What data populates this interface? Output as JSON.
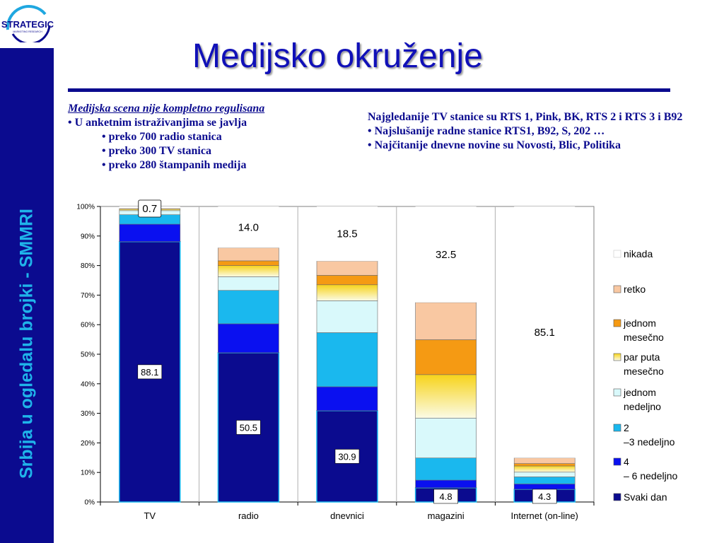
{
  "logo": {
    "text": "STRATEGIC",
    "subtext": "MARKETING RESEARCH"
  },
  "sidebar": {
    "text": "Srbija u ogledalu brojki - SMMRI"
  },
  "title": "Medijsko okruženje",
  "left_text": {
    "heading": "Medijska scena nije kompletno regulisana",
    "bullet_main": "• U anketnim istraživanjima se javlja",
    "sub_bullets": [
      "• preko 700 radio stanica",
      "• preko 300 TV stanica",
      "• preko 280 štampanih medija"
    ]
  },
  "right_text": {
    "lines": [
      "Najgledanije TV stanice su RTS 1, Pink, BK, RTS 2 i RTS 3 i B92",
      "• Najslušanije radne stanice RTS1, B92, S, 202 …",
      "• Najčitanije dnevne novine su Novosti, Blic, Politika"
    ]
  },
  "chart_data": {
    "type": "bar",
    "stacked": true,
    "categories": [
      "TV",
      "radio",
      "dnevnici",
      "magazini",
      "Internet (on-line)"
    ],
    "ylim": [
      0,
      100
    ],
    "yticks": [
      "0%",
      "10%",
      "20%",
      "30%",
      "40%",
      "50%",
      "60%",
      "70%",
      "80%",
      "90%",
      "100%"
    ],
    "grid": false,
    "legend_position": "right",
    "series": [
      {
        "name": "Svaki dan",
        "color": "#0b0b8f",
        "values": [
          88.1,
          50.5,
          30.9,
          4.8,
          4.3
        ]
      },
      {
        "name": "4 – 6 nedeljno",
        "color": "#0a10f0",
        "values": [
          5.9,
          9.8,
          8.1,
          2.6,
          1.8
        ]
      },
      {
        "name": "2 –3 nedeljno",
        "color": "#1ab8ee",
        "values": [
          3.2,
          11.3,
          18.3,
          7.5,
          2.4
        ]
      },
      {
        "name": "jednom nedeljno",
        "color": "#d9f9fb",
        "values": [
          1.4,
          4.6,
          10.8,
          13.5,
          1.6
        ]
      },
      {
        "name": "par puta mesečno",
        "color": "#f7ea8a",
        "values": [
          0.5,
          3.8,
          5.4,
          14.7,
          2.1
        ]
      },
      {
        "name": "jednom mesečno",
        "color": "#f59a13",
        "values": [
          0.2,
          1.6,
          3.2,
          11.8,
          0.8
        ]
      },
      {
        "name": "retko",
        "color": "#f9c8a2",
        "values": [
          0,
          4.4,
          4.8,
          12.6,
          1.9
        ]
      },
      {
        "name": "nikada",
        "color": "#ffffff",
        "values": [
          0.7,
          14.0,
          18.5,
          32.5,
          85.1
        ]
      }
    ],
    "data_labels": {
      "Svaki dan": [
        "88.1",
        "50.5",
        "30.9",
        "4.8",
        "4.3"
      ],
      "nikada": [
        "0.7",
        "14.0",
        "18.5",
        "32.5",
        "85.1"
      ]
    }
  }
}
